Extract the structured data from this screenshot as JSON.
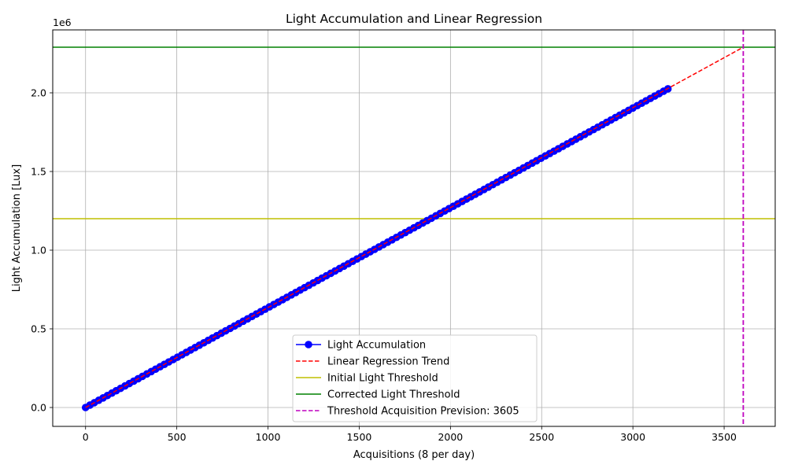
{
  "chart_data": {
    "type": "line",
    "title": "Light Accumulation and Linear Regression",
    "xlabel": "Acquisitions (8 per day)",
    "ylabel": "Light Accumulation [Lux]",
    "y_offset_label": "1e6",
    "xlim": [
      -180,
      3780
    ],
    "ylim": [
      -120000,
      2400000
    ],
    "x_ticks": [
      0,
      500,
      1000,
      1500,
      2000,
      2500,
      3000,
      3500
    ],
    "x_tick_labels": [
      "0",
      "500",
      "1000",
      "1500",
      "2000",
      "2500",
      "3000",
      "3500"
    ],
    "y_ticks": [
      0,
      500000,
      1000000,
      1500000,
      2000000
    ],
    "y_tick_labels": [
      "0.0",
      "0.5",
      "1.0",
      "1.5",
      "2.0"
    ],
    "grid": true,
    "legend_position": "bottom-center",
    "series": [
      {
        "name": "Light Accumulation",
        "kind": "line-markers",
        "color": "#0000ff",
        "x_start": 0,
        "x_end": 3195,
        "x_step": 24,
        "slope": 634.5
      },
      {
        "name": "Linear Regression Trend",
        "kind": "dashed-line",
        "color": "#ff0000",
        "x": [
          0,
          3605
        ],
        "y": [
          0,
          2290000
        ]
      },
      {
        "name": "Initial Light Threshold",
        "kind": "hline",
        "color": "#bfbf00",
        "y": 1200000
      },
      {
        "name": "Corrected Light Threshold",
        "kind": "hline",
        "color": "#008000",
        "y": 2290000
      },
      {
        "name": "Threshold Acquisition Prevision: 3605",
        "kind": "vline-dashed",
        "color": "#bf00bf",
        "x": 3605
      }
    ]
  }
}
